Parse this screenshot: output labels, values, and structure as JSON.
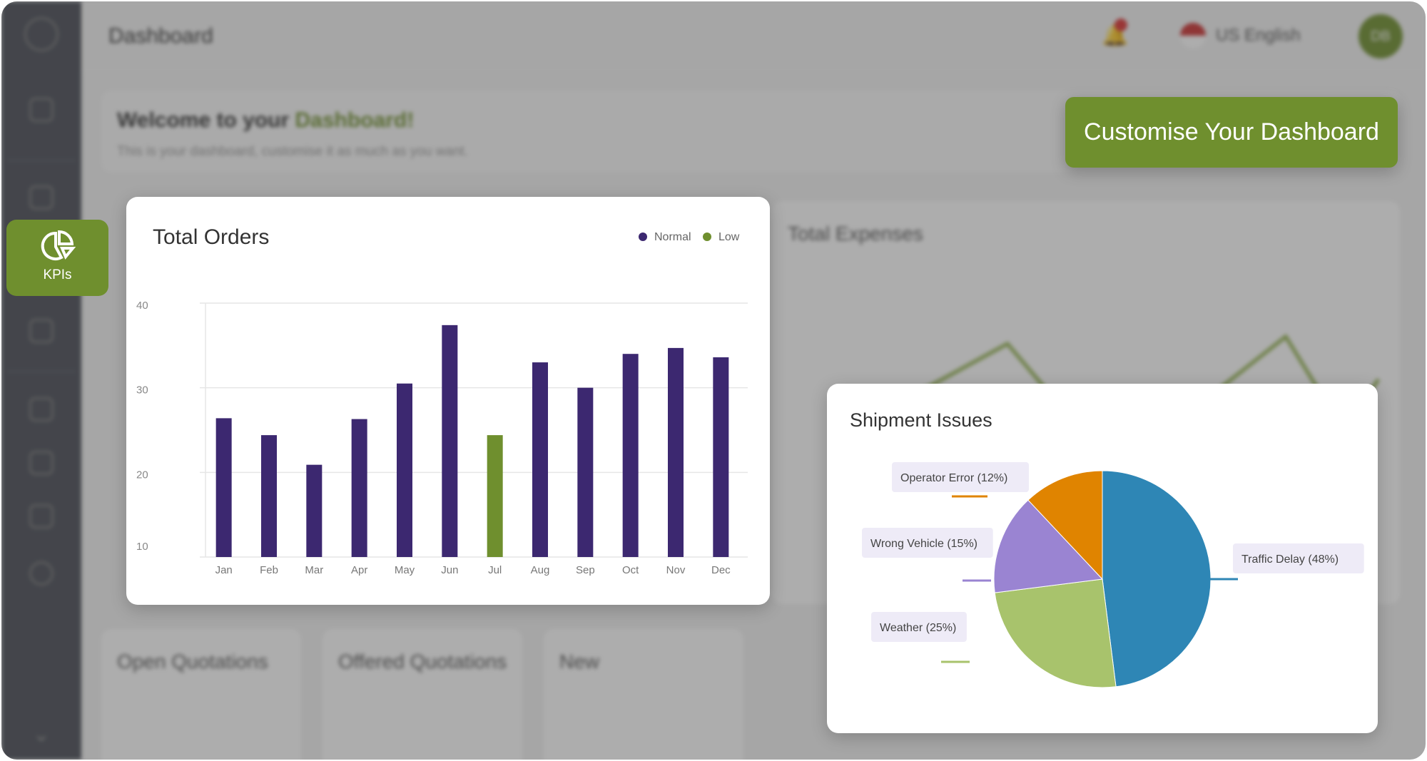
{
  "header": {
    "title": "Dashboard",
    "language": "US English",
    "avatar_initials": "DB",
    "notification_count": "1"
  },
  "welcome": {
    "title_prefix": "Welcome to your",
    "title_highlight": "Dashboard!",
    "subtitle": "This is your dashboard, customise it as much as you want."
  },
  "cta": {
    "label": "Customise Your Dashboard"
  },
  "sidebar": {
    "active_item": "KPIs"
  },
  "background_cards": {
    "expenses_title": "Total Expenses",
    "open_quotations": "Open Quotations",
    "offered_quotations": "Offered Quotations",
    "new": "New"
  },
  "colors": {
    "accent": "#6f8f2e",
    "normal": "#3c2870",
    "low": "#6f8f2e",
    "sidebar": "#4a4d57"
  },
  "chart_data": [
    {
      "type": "bar",
      "title": "Total Orders",
      "categories": [
        "Jan",
        "Feb",
        "Mar",
        "Apr",
        "May",
        "Jun",
        "Jul",
        "Aug",
        "Sep",
        "Oct",
        "Nov",
        "Dec"
      ],
      "values": [
        26.4,
        24.4,
        20.9,
        26.3,
        30.5,
        37.4,
        24.4,
        33.0,
        30.0,
        34.0,
        34.7,
        33.6
      ],
      "status": [
        "Normal",
        "Normal",
        "Normal",
        "Normal",
        "Normal",
        "Normal",
        "Low",
        "Normal",
        "Normal",
        "Normal",
        "Normal",
        "Normal"
      ],
      "legend": [
        {
          "name": "Normal",
          "color": "#3c2870"
        },
        {
          "name": "Low",
          "color": "#6f8f2e"
        }
      ],
      "legend_position": "top-right",
      "yticks": [
        10,
        20,
        30,
        40
      ],
      "ylim": [
        10,
        40
      ],
      "grid": true
    },
    {
      "type": "pie",
      "title": "Shipment Issues",
      "slices": [
        {
          "label": "Traffic Delay (48%)",
          "value": 48,
          "color": "#2e86b5"
        },
        {
          "label": "Weather (25%)",
          "value": 25,
          "color": "#a8c36c"
        },
        {
          "label": "Wrong Vehicle (15%)",
          "value": 15,
          "color": "#9a84d2"
        },
        {
          "label": "Operator Error (12%)",
          "value": 12,
          "color": "#e08400"
        }
      ]
    }
  ]
}
